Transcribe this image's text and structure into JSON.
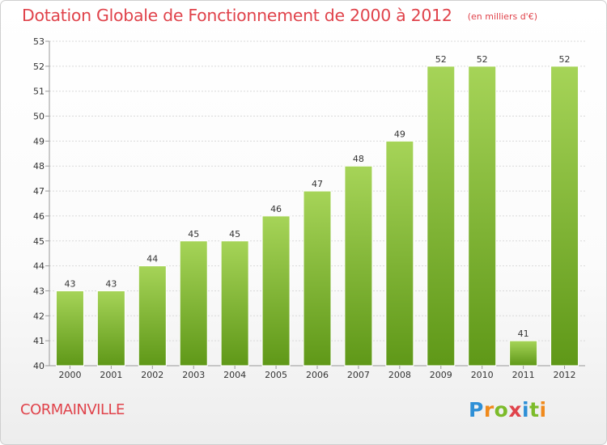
{
  "title": "Dotation Globale de Fonctionnement de 2000 à 2012",
  "subtitle": "(en milliers d'€)",
  "town": "CORMAINVILLE",
  "logo": {
    "text": "Proxiti",
    "letter_colors": [
      "#2e8fd6",
      "#f08a1c",
      "#7cbb2a",
      "#e0434b",
      "#2e8fd6",
      "#7cbb2a",
      "#f08a1c"
    ]
  },
  "colors": {
    "title": "#e0434b",
    "bar_light": "#a6d458",
    "bar_dark": "#5f9818",
    "axis": "#999999",
    "grid": "#d9d9d9",
    "text": "#333333"
  },
  "chart_data": {
    "type": "bar",
    "title": "Dotation Globale de Fonctionnement de 2000 à 2012",
    "subtitle": "(en milliers d'€)",
    "xlabel": "",
    "ylabel": "",
    "categories": [
      "2000",
      "2001",
      "2002",
      "2003",
      "2004",
      "2005",
      "2006",
      "2007",
      "2008",
      "2009",
      "2010",
      "2011",
      "2012"
    ],
    "values": [
      43,
      43,
      44,
      45,
      45,
      46,
      47,
      48,
      49,
      52,
      52,
      41,
      52
    ],
    "data_labels": [
      "43",
      "43",
      "44",
      "45",
      "45",
      "46",
      "47",
      "48",
      "49",
      "52",
      "52",
      "41",
      "52"
    ],
    "ylim": [
      40,
      53
    ],
    "yticks": [
      40,
      41,
      42,
      43,
      44,
      45,
      46,
      47,
      48,
      49,
      50,
      51,
      52,
      53
    ],
    "grid": true
  }
}
